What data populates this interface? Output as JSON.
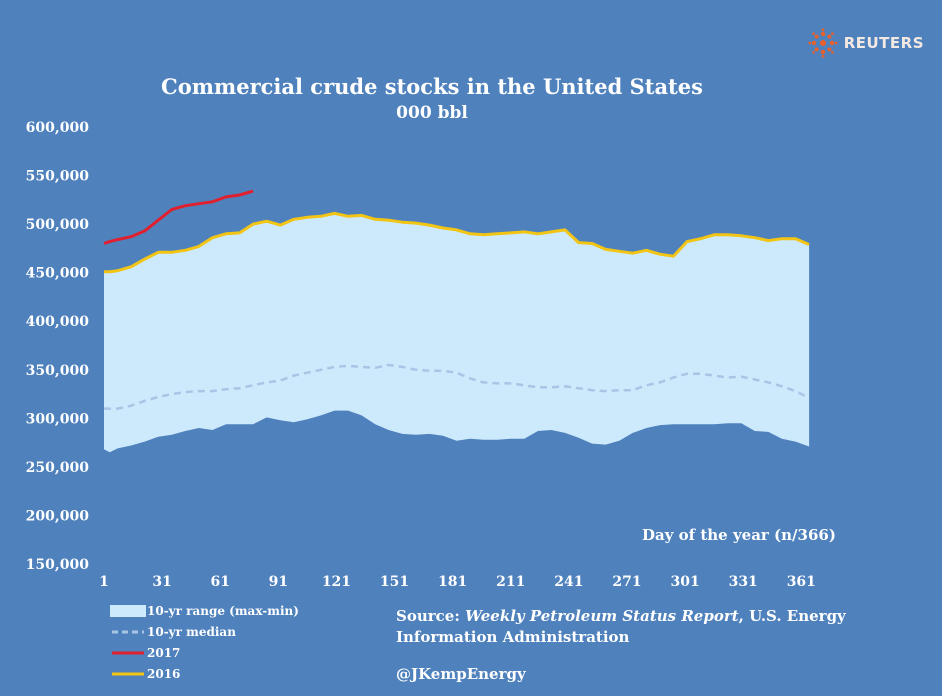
{
  "brand": {
    "name": "REUTERS",
    "icon": "reuters-logo-icon"
  },
  "colors": {
    "background": "#4f81bd",
    "range_fill": "#cdeafd",
    "median": "#aac4e6",
    "series_2017": "#e0202f",
    "series_2016": "#f2c414"
  },
  "chart_data": {
    "type": "area",
    "title": "Commercial crude stocks in the United States",
    "subtitle": "000 bbl",
    "xlabel": "Day of the year (n/366)",
    "ylabel": "",
    "xlim": [
      1,
      366
    ],
    "ylim": [
      150000,
      600000
    ],
    "x_ticks": [
      1,
      31,
      61,
      91,
      121,
      151,
      181,
      211,
      241,
      271,
      301,
      331,
      361
    ],
    "y_ticks": [
      150000,
      200000,
      250000,
      300000,
      350000,
      400000,
      450000,
      500000,
      550000,
      600000
    ],
    "y_tick_labels": [
      "150,000",
      "200,000",
      "250,000",
      "300,000",
      "350,000",
      "400,000",
      "450,000",
      "500,000",
      "550,000",
      "600,000"
    ],
    "grid": false,
    "legend_position": "bottom-left",
    "series": [
      {
        "name": "10-yr range (max-min)",
        "kind": "band",
        "x": [
          1,
          4,
          8,
          15,
          22,
          29,
          36,
          43,
          50,
          57,
          64,
          71,
          78,
          85,
          92,
          99,
          106,
          113,
          120,
          127,
          134,
          141,
          148,
          155,
          162,
          169,
          176,
          183,
          190,
          197,
          204,
          211,
          218,
          225,
          232,
          239,
          246,
          253,
          260,
          267,
          274,
          281,
          288,
          295,
          302,
          309,
          316,
          323,
          330,
          337,
          344,
          351,
          358,
          365
        ],
        "upper": [
          451000,
          451000,
          452000,
          456000,
          464000,
          471000,
          471000,
          473000,
          477000,
          486000,
          490000,
          491000,
          500000,
          503000,
          499000,
          505000,
          507000,
          508000,
          511000,
          508000,
          509000,
          505000,
          504000,
          502000,
          501000,
          499000,
          496000,
          494000,
          490000,
          489000,
          490000,
          491000,
          492000,
          490000,
          492000,
          494000,
          481000,
          480000,
          474000,
          472000,
          470000,
          473000,
          469000,
          467000,
          482000,
          485000,
          489000,
          489000,
          488000,
          486000,
          483000,
          485000,
          485000,
          479000
        ],
        "lower": [
          268000,
          265000,
          269000,
          272000,
          276000,
          281000,
          283000,
          287000,
          290000,
          288000,
          294000,
          294000,
          294000,
          301000,
          298000,
          296000,
          299000,
          303000,
          308000,
          308000,
          303000,
          294000,
          288000,
          284000,
          283000,
          284000,
          282000,
          277000,
          279000,
          278000,
          278000,
          279000,
          279000,
          287000,
          288000,
          285000,
          280000,
          274000,
          273000,
          277000,
          285000,
          290000,
          293000,
          294000,
          294000,
          294000,
          294000,
          295000,
          295000,
          287000,
          286000,
          279000,
          276000,
          271000
        ]
      },
      {
        "name": "10-yr median",
        "kind": "dashed-line",
        "x": [
          1,
          8,
          15,
          22,
          29,
          36,
          43,
          50,
          57,
          64,
          71,
          78,
          85,
          92,
          99,
          106,
          113,
          120,
          127,
          134,
          141,
          148,
          155,
          162,
          169,
          176,
          183,
          190,
          197,
          204,
          211,
          218,
          225,
          232,
          239,
          246,
          253,
          260,
          267,
          274,
          281,
          288,
          295,
          302,
          309,
          316,
          323,
          330,
          337,
          344,
          351,
          358,
          365
        ],
        "values": [
          310000,
          310000,
          313000,
          318000,
          322000,
          325000,
          327000,
          328000,
          328000,
          330000,
          331000,
          334000,
          337000,
          339000,
          344000,
          347000,
          350000,
          353000,
          354000,
          353000,
          352000,
          355000,
          353000,
          350000,
          349000,
          349000,
          347000,
          341000,
          337000,
          336000,
          336000,
          334000,
          332000,
          332000,
          333000,
          331000,
          329000,
          328000,
          329000,
          329000,
          334000,
          337000,
          342000,
          346000,
          346000,
          344000,
          342000,
          343000,
          340000,
          337000,
          333000,
          328000,
          321000
        ]
      },
      {
        "name": "2017",
        "kind": "line",
        "x": [
          1,
          4,
          8,
          15,
          22,
          29,
          36,
          43,
          50,
          57,
          64,
          71,
          78
        ],
        "values": [
          480000,
          482000,
          484000,
          487000,
          493000,
          504000,
          515000,
          519000,
          521000,
          523000,
          528000,
          530000,
          534000
        ]
      },
      {
        "name": "2016",
        "kind": "line",
        "x": [
          1,
          4,
          8,
          15,
          22,
          29,
          36,
          43,
          50,
          57,
          64,
          71,
          78,
          85,
          92,
          99,
          106,
          113,
          120,
          127,
          134,
          141,
          148,
          155,
          162,
          169,
          176,
          183,
          190,
          197,
          204,
          211,
          218,
          225,
          232,
          239,
          246,
          253,
          260,
          267,
          274,
          281,
          288,
          295,
          302,
          309,
          316,
          323,
          330,
          337,
          344,
          351,
          358,
          365
        ],
        "values": [
          451000,
          451000,
          452000,
          456000,
          464000,
          471000,
          471000,
          473000,
          477000,
          486000,
          490000,
          491000,
          500000,
          503000,
          499000,
          505000,
          507000,
          508000,
          511000,
          508000,
          509000,
          505000,
          504000,
          502000,
          501000,
          499000,
          496000,
          494000,
          490000,
          489000,
          490000,
          491000,
          492000,
          490000,
          492000,
          494000,
          481000,
          480000,
          474000,
          472000,
          470000,
          473000,
          469000,
          467000,
          482000,
          485000,
          489000,
          489000,
          488000,
          486000,
          483000,
          485000,
          485000,
          479000
        ]
      }
    ]
  },
  "legend": {
    "range_label": "10-yr range (max-min)",
    "median_label": "10-yr median",
    "y2017_label": "2017",
    "y2016_label": "2016"
  },
  "source": {
    "prefix": "Source:",
    "publication": "Weekly Petroleum Status Report",
    "agency_line1": ", U.S. Energy",
    "agency_line2": "Information Administration"
  },
  "handle": "@JKempEnergy"
}
